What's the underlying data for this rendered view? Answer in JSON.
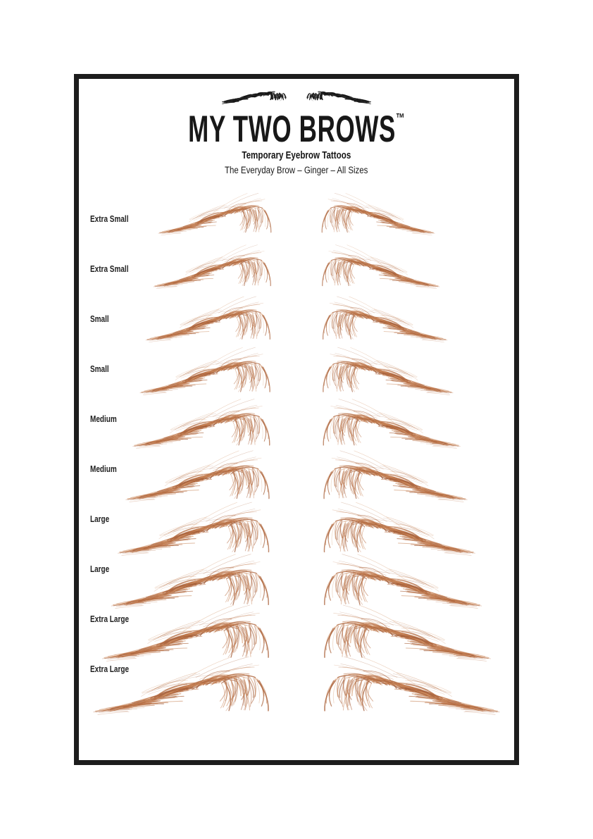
{
  "header": {
    "logo": "two-black-eyebrows-logo",
    "title": "MY TWO BROWS",
    "trademark": "™",
    "subtitle": "Temporary Eyebrow Tattoos",
    "tagline": "The Everyday Brow – Ginger – All Sizes"
  },
  "colors": {
    "page_background": "#ffffff",
    "frame_border": "#1d1d1d",
    "text": "#1c1c1c",
    "brow_palette": [
      "#a9613a",
      "#b97046",
      "#c68153",
      "#d19265",
      "#c37a4c",
      "#9f5833"
    ],
    "logo_palette": [
      "#101010",
      "#1c1c1c",
      "#2e2e2e"
    ]
  },
  "rows": [
    {
      "label": "Extra Small",
      "brow_width": 178,
      "brow_height": 45,
      "pair_gap": 44
    },
    {
      "label": "Extra Small",
      "brow_width": 185,
      "brow_height": 47,
      "pair_gap": 44
    },
    {
      "label": "Small",
      "brow_width": 196,
      "brow_height": 49,
      "pair_gap": 44
    },
    {
      "label": "Small",
      "brow_width": 205,
      "brow_height": 51,
      "pair_gap": 43
    },
    {
      "label": "Medium",
      "brow_width": 216,
      "brow_height": 53,
      "pair_gap": 42
    },
    {
      "label": "Medium",
      "brow_width": 226,
      "brow_height": 55,
      "pair_gap": 42
    },
    {
      "label": "Large",
      "brow_width": 238,
      "brow_height": 57,
      "pair_gap": 41
    },
    {
      "label": "Large",
      "brow_width": 248,
      "brow_height": 58,
      "pair_gap": 40
    },
    {
      "label": "Extra Large",
      "brow_width": 262,
      "brow_height": 60,
      "pair_gap": 38
    },
    {
      "label": "Extra Large",
      "brow_width": 276,
      "brow_height": 62,
      "pair_gap": 36
    }
  ]
}
